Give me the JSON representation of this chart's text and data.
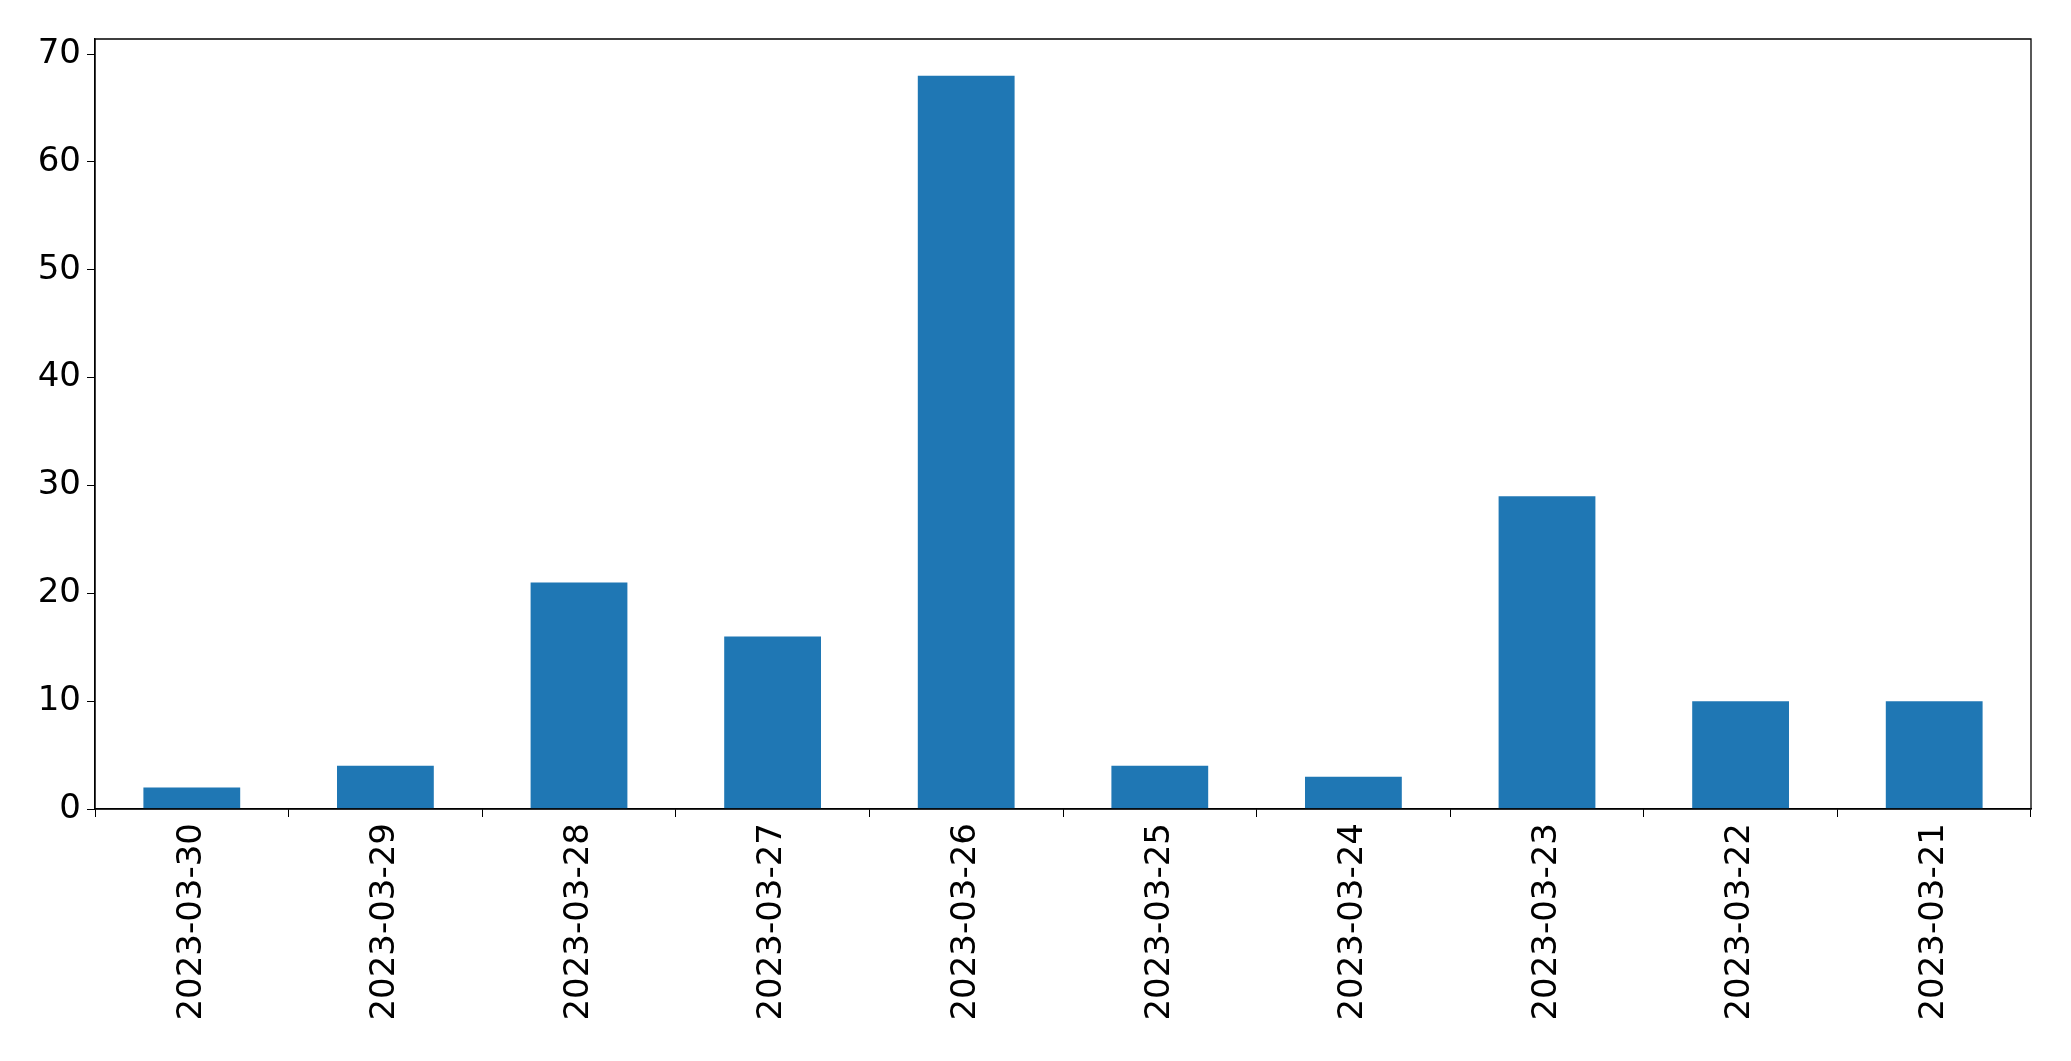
{
  "chart_data": {
    "type": "bar",
    "categories": [
      "2023-03-30",
      "2023-03-29",
      "2023-03-28",
      "2023-03-27",
      "2023-03-26",
      "2023-03-25",
      "2023-03-24",
      "2023-03-23",
      "2023-03-22",
      "2023-03-21"
    ],
    "values": [
      2,
      4,
      21,
      16,
      68,
      4,
      3,
      29,
      10,
      10
    ],
    "color": "#1f77b4",
    "ylim": [
      0,
      71.4
    ],
    "yticks": [
      0,
      10,
      20,
      30,
      40,
      50,
      60,
      70
    ]
  }
}
